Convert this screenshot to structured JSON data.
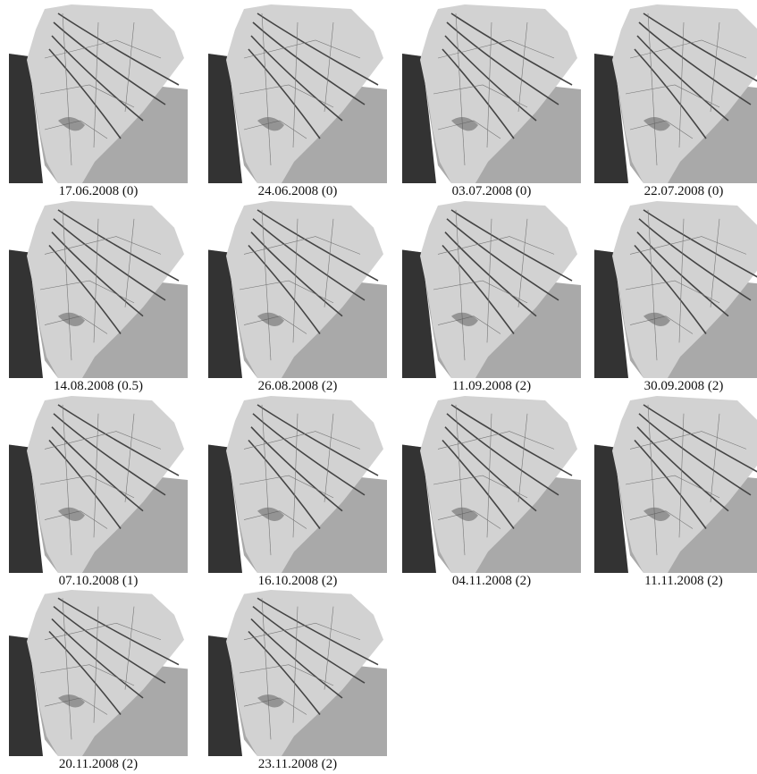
{
  "panels": [
    {
      "caption": "17.06.2008 (0)"
    },
    {
      "caption": "24.06.2008 (0)"
    },
    {
      "caption": "03.07.2008 (0)"
    },
    {
      "caption": "22.07.2008 (0)"
    },
    {
      "caption": "14.08.2008 (0.5)"
    },
    {
      "caption": "26.08.2008 (2)"
    },
    {
      "caption": "11.09.2008 (2)"
    },
    {
      "caption": "30.09.2008 (2)"
    },
    {
      "caption": "07.10.2008 (1)"
    },
    {
      "caption": "16.10.2008 (2)"
    },
    {
      "caption": "04.11.2008 (2)"
    },
    {
      "caption": "11.11.2008 (2)"
    },
    {
      "caption": "20.11.2008 (2)"
    },
    {
      "caption": "23.11.2008 (2)"
    }
  ]
}
